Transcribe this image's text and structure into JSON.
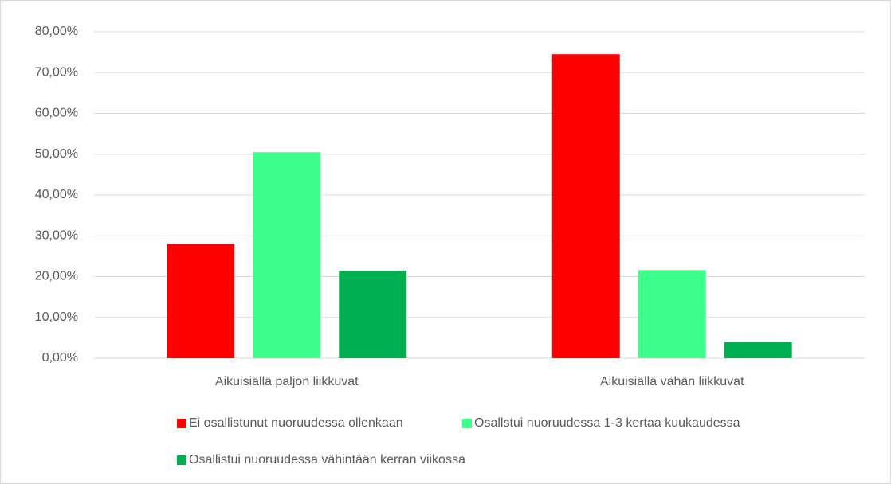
{
  "chart_data": {
    "type": "bar",
    "categories": [
      "Aikuisiällä paljon liikkuvat",
      "Aikuisiällä vähän liikkuvat"
    ],
    "series": [
      {
        "name": "Ei osallistunut nuoruudessa ollenkaan",
        "color": "#ff0000",
        "values": [
          28,
          74.5
        ]
      },
      {
        "name": "Osallstui nuoruudessa 1-3 kertaa kuukaudessa",
        "color": "#3cff8c",
        "values": [
          50.5,
          21.6
        ]
      },
      {
        "name": "Osallistui nuoruudessa vähintään kerran viikossa",
        "color": "#00b050",
        "values": [
          21.4,
          4
        ]
      }
    ],
    "ylim": [
      0,
      80
    ],
    "yticks": [
      {
        "value": 0,
        "label": "0,00%"
      },
      {
        "value": 10,
        "label": "10,00%"
      },
      {
        "value": 20,
        "label": "20,00%"
      },
      {
        "value": 30,
        "label": "30,00%"
      },
      {
        "value": 40,
        "label": "40,00%"
      },
      {
        "value": 50,
        "label": "50,00%"
      },
      {
        "value": 60,
        "label": "60,00%"
      },
      {
        "value": 70,
        "label": "70,00%"
      },
      {
        "value": 80,
        "label": "80,00%"
      }
    ],
    "grid": true,
    "legend": "bottom"
  }
}
